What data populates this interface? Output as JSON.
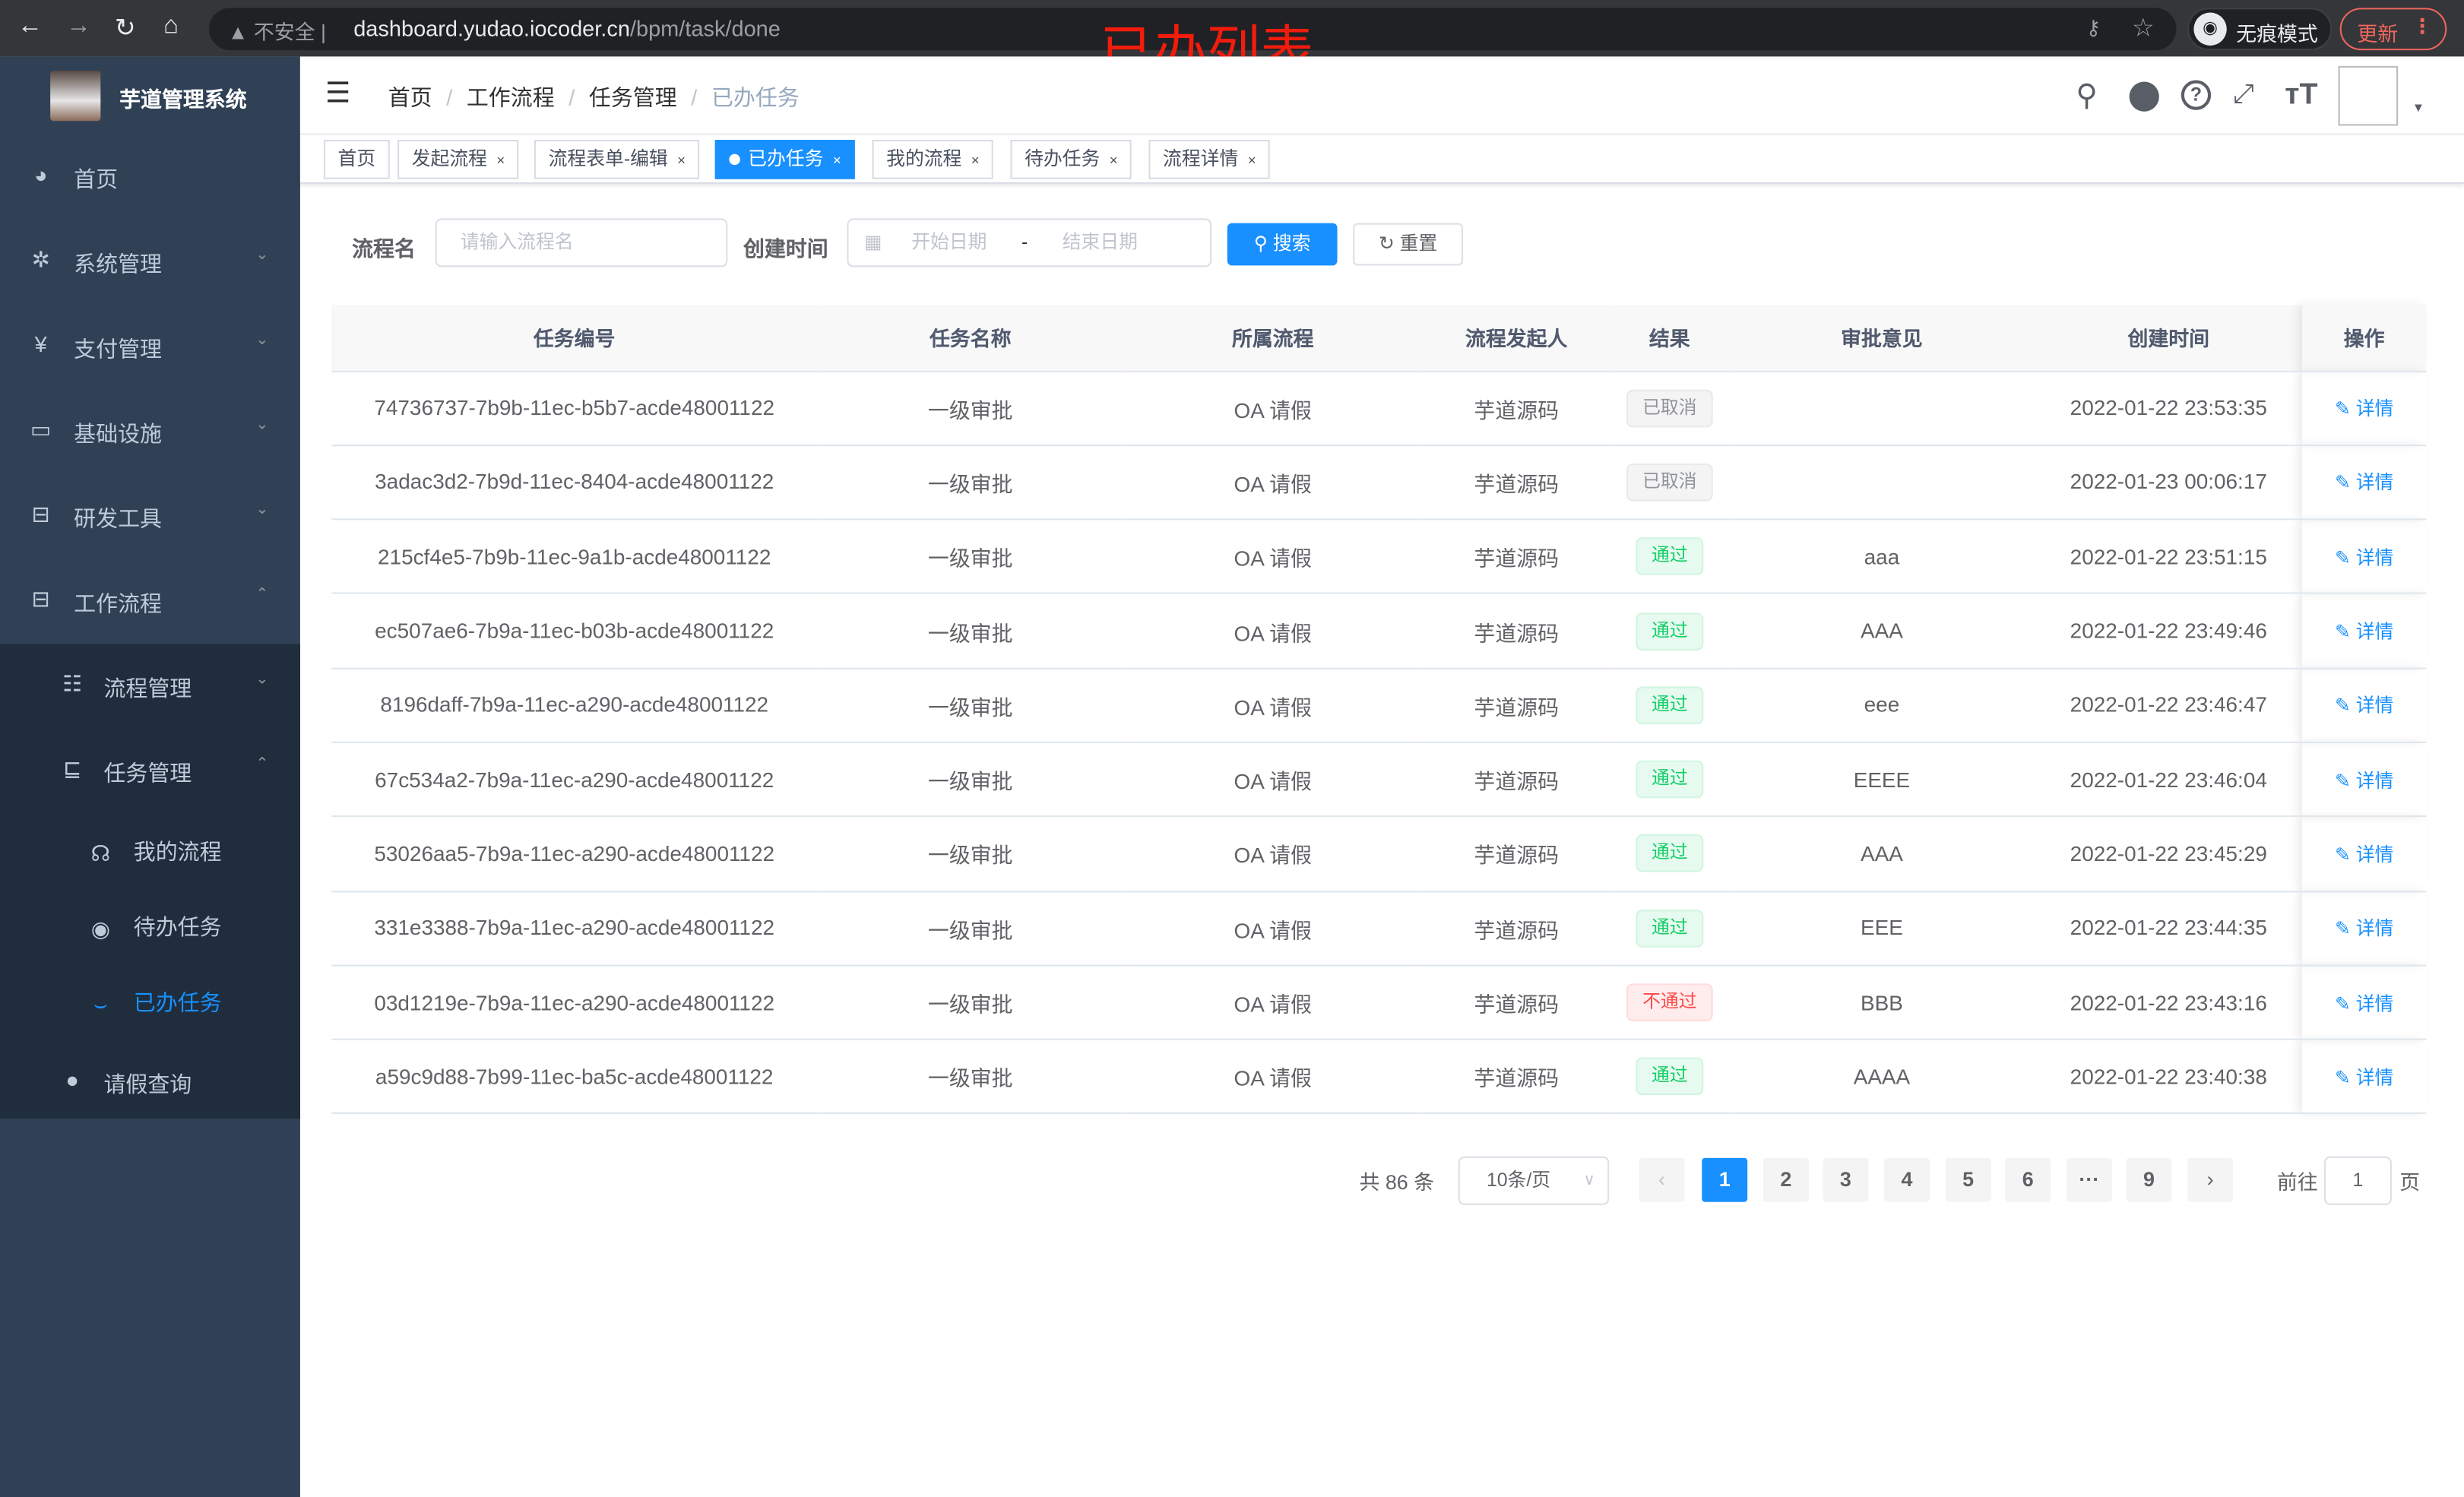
{
  "browser": {
    "insecure_label": "不安全",
    "url_host": "dashboard.yudao.iocoder.cn",
    "url_path": "/bpm/task/done",
    "incognito_label": "无痕模式",
    "update_label": "更新"
  },
  "annotation": "已办列表",
  "app": {
    "title": "芋道管理系统"
  },
  "sidebar": {
    "items": [
      {
        "label": "首页",
        "icon": "dashboard-icon"
      },
      {
        "label": "系统管理",
        "icon": "gear-icon"
      },
      {
        "label": "支付管理",
        "icon": "yen-icon"
      },
      {
        "label": "基础设施",
        "icon": "monitor-icon"
      },
      {
        "label": "研发工具",
        "icon": "toolbox-icon"
      },
      {
        "label": "工作流程",
        "icon": "toolbox-icon"
      },
      {
        "label": "流程管理",
        "icon": "list-icon"
      },
      {
        "label": "任务管理",
        "icon": "tree-icon"
      },
      {
        "label": "我的流程",
        "icon": "chat-icon"
      },
      {
        "label": "待办任务",
        "icon": "eye-icon"
      },
      {
        "label": "已办任务",
        "icon": "done-icon"
      },
      {
        "label": "请假查询",
        "icon": "user-icon"
      }
    ]
  },
  "breadcrumb": [
    "首页",
    "工作流程",
    "任务管理",
    "已办任务"
  ],
  "tags": [
    "首页",
    "发起流程",
    "流程表单-编辑",
    "已办任务",
    "我的流程",
    "待办任务",
    "流程详情"
  ],
  "filter": {
    "name_label": "流程名",
    "name_placeholder": "请输入流程名",
    "time_label": "创建时间",
    "start_placeholder": "开始日期",
    "separator": "-",
    "end_placeholder": "结束日期",
    "search_label": "搜索",
    "reset_label": "重置"
  },
  "table": {
    "columns": [
      "任务编号",
      "任务名称",
      "所属流程",
      "流程发起人",
      "结果",
      "审批意见",
      "创建时间",
      "操作"
    ],
    "detail_label": "详情",
    "rows": [
      {
        "id": "74736737-7b9b-11ec-b5b7-acde48001122",
        "name": "一级审批",
        "process": "OA 请假",
        "starter": "芋道源码",
        "result": "已取消",
        "result_type": "cancel",
        "comment": "",
        "time": "2022-01-22 23:53:35"
      },
      {
        "id": "3adac3d2-7b9d-11ec-8404-acde48001122",
        "name": "一级审批",
        "process": "OA 请假",
        "starter": "芋道源码",
        "result": "已取消",
        "result_type": "cancel",
        "comment": "",
        "time": "2022-01-23 00:06:17"
      },
      {
        "id": "215cf4e5-7b9b-11ec-9a1b-acde48001122",
        "name": "一级审批",
        "process": "OA 请假",
        "starter": "芋道源码",
        "result": "通过",
        "result_type": "pass",
        "comment": "aaa",
        "time": "2022-01-22 23:51:15"
      },
      {
        "id": "ec507ae6-7b9a-11ec-b03b-acde48001122",
        "name": "一级审批",
        "process": "OA 请假",
        "starter": "芋道源码",
        "result": "通过",
        "result_type": "pass",
        "comment": "AAA",
        "time": "2022-01-22 23:49:46"
      },
      {
        "id": "8196daff-7b9a-11ec-a290-acde48001122",
        "name": "一级审批",
        "process": "OA 请假",
        "starter": "芋道源码",
        "result": "通过",
        "result_type": "pass",
        "comment": "eee",
        "time": "2022-01-22 23:46:47"
      },
      {
        "id": "67c534a2-7b9a-11ec-a290-acde48001122",
        "name": "一级审批",
        "process": "OA 请假",
        "starter": "芋道源码",
        "result": "通过",
        "result_type": "pass",
        "comment": "EEEE",
        "time": "2022-01-22 23:46:04"
      },
      {
        "id": "53026aa5-7b9a-11ec-a290-acde48001122",
        "name": "一级审批",
        "process": "OA 请假",
        "starter": "芋道源码",
        "result": "通过",
        "result_type": "pass",
        "comment": "AAA",
        "time": "2022-01-22 23:45:29"
      },
      {
        "id": "331e3388-7b9a-11ec-a290-acde48001122",
        "name": "一级审批",
        "process": "OA 请假",
        "starter": "芋道源码",
        "result": "通过",
        "result_type": "pass",
        "comment": "EEE",
        "time": "2022-01-22 23:44:35"
      },
      {
        "id": "03d1219e-7b9a-11ec-a290-acde48001122",
        "name": "一级审批",
        "process": "OA 请假",
        "starter": "芋道源码",
        "result": "不通过",
        "result_type": "reject",
        "comment": "BBB",
        "time": "2022-01-22 23:43:16"
      },
      {
        "id": "a59c9d88-7b99-11ec-ba5c-acde48001122",
        "name": "一级审批",
        "process": "OA 请假",
        "starter": "芋道源码",
        "result": "通过",
        "result_type": "pass",
        "comment": "AAAA",
        "time": "2022-01-22 23:40:38"
      }
    ]
  },
  "pagination": {
    "total_label": "共 86 条",
    "page_size": "10条/页",
    "pages": [
      "1",
      "2",
      "3",
      "4",
      "5",
      "6",
      "···",
      "9"
    ],
    "current": "1",
    "goto_label": "前往",
    "goto_value": "1",
    "page_suffix": "页"
  },
  "colors": {
    "primary": "#1890ff",
    "sidebar": "#304156",
    "submenu": "#1f2d3d",
    "pass": "#13ce66",
    "reject": "#ff4949",
    "cancel": "#909399"
  }
}
